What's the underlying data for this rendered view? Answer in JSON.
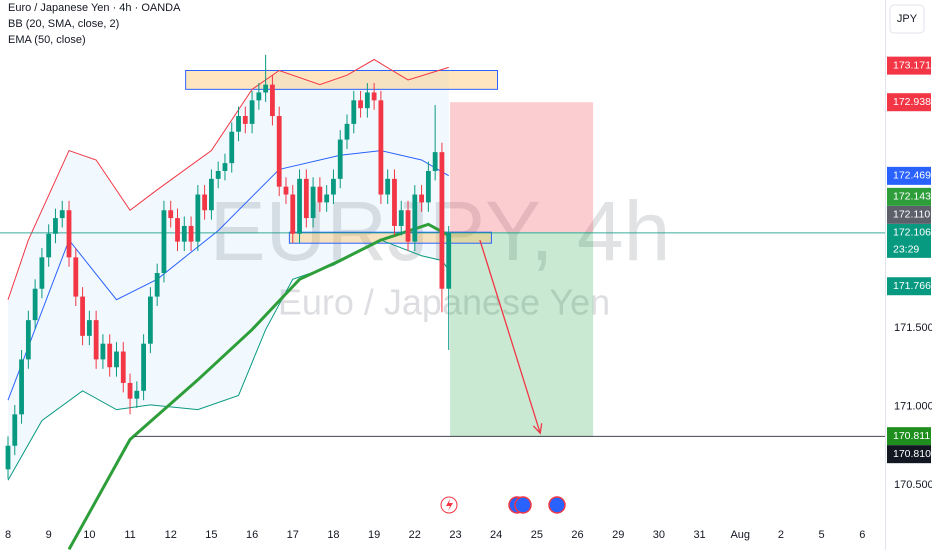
{
  "chart_data": {
    "type": "candlestick",
    "title": "Euro / Japanese Yen · 4h · OANDA",
    "indicator_labels": [
      "BB (20, SMA, close, 2)",
      "EMA (50, close)"
    ],
    "watermark": "EURJPY, 4h",
    "watermark_subtitle": "Euro / Japanese Yen",
    "currency": "JPY",
    "up_color": "#089981",
    "down_color": "#f23645",
    "x": [
      0,
      1,
      2,
      3,
      4,
      5,
      6,
      7,
      8,
      9,
      10,
      11,
      12,
      13,
      14,
      15,
      16,
      17,
      18,
      19,
      20,
      21,
      22,
      23,
      24,
      25,
      26,
      27,
      28,
      29,
      30,
      31,
      32,
      33,
      34,
      35,
      36,
      37,
      38,
      39,
      40,
      41,
      42,
      43,
      44,
      45,
      46,
      47,
      48,
      49,
      50,
      51,
      52,
      53,
      54,
      55,
      56,
      57,
      58,
      59,
      60,
      61,
      62,
      63,
      64,
      65
    ],
    "open": [
      170.6,
      170.75,
      170.95,
      171.3,
      171.55,
      171.75,
      171.95,
      172.1,
      172.2,
      172.25,
      171.95,
      171.7,
      171.45,
      171.55,
      171.3,
      171.4,
      171.25,
      171.35,
      171.15,
      171.05,
      171.1,
      171.4,
      171.7,
      171.85,
      172.25,
      172.2,
      172.05,
      172.15,
      172.05,
      172.35,
      172.25,
      172.45,
      172.5,
      172.55,
      172.75,
      172.85,
      172.8,
      172.95,
      173.0,
      173.05,
      172.85,
      172.4,
      172.35,
      172.1,
      172.45,
      172.2,
      172.4,
      172.3,
      172.35,
      172.45,
      172.7,
      172.8,
      172.95,
      172.9,
      173.0,
      172.95,
      172.35,
      172.45,
      172.15,
      172.25,
      172.05,
      172.35,
      172.3,
      172.5,
      172.62,
      171.75
    ],
    "high": [
      170.81,
      171.01,
      171.36,
      171.61,
      171.81,
      172.01,
      172.16,
      172.26,
      172.31,
      172.31,
      172.01,
      171.76,
      171.61,
      171.61,
      171.46,
      171.46,
      171.41,
      171.41,
      171.21,
      171.16,
      171.46,
      171.76,
      171.91,
      172.31,
      172.31,
      172.26,
      172.21,
      172.21,
      172.41,
      172.41,
      172.51,
      172.56,
      172.61,
      172.81,
      172.91,
      172.91,
      173.01,
      173.06,
      173.24,
      173.11,
      172.91,
      172.46,
      172.41,
      172.51,
      172.51,
      172.46,
      172.46,
      172.41,
      172.51,
      172.76,
      172.86,
      173.01,
      173.01,
      173.06,
      173.06,
      173.01,
      172.51,
      172.51,
      172.31,
      172.31,
      172.41,
      172.41,
      172.56,
      172.92,
      172.68,
      172.15
    ],
    "low": [
      170.54,
      170.69,
      170.89,
      171.24,
      171.49,
      171.69,
      171.89,
      172.04,
      172.14,
      171.89,
      171.64,
      171.39,
      171.39,
      171.24,
      171.24,
      171.19,
      171.19,
      171.09,
      170.95,
      170.99,
      171.04,
      171.34,
      171.64,
      171.79,
      172.14,
      171.99,
      171.99,
      171.99,
      171.99,
      172.19,
      172.19,
      172.39,
      172.44,
      172.49,
      172.69,
      172.74,
      172.74,
      172.89,
      172.94,
      172.79,
      172.34,
      172.29,
      172.04,
      172.04,
      172.14,
      172.14,
      172.24,
      172.24,
      172.29,
      172.39,
      172.64,
      172.74,
      172.84,
      172.84,
      172.89,
      172.29,
      172.29,
      172.09,
      172.09,
      171.99,
      171.99,
      172.24,
      172.24,
      172.44,
      171.6,
      171.36
    ],
    "close": [
      170.75,
      170.95,
      171.3,
      171.55,
      171.75,
      171.95,
      172.1,
      172.2,
      172.25,
      171.95,
      171.7,
      171.45,
      171.55,
      171.3,
      171.4,
      171.25,
      171.35,
      171.15,
      171.05,
      171.1,
      171.4,
      171.7,
      171.85,
      172.25,
      172.2,
      172.05,
      172.15,
      172.05,
      172.35,
      172.25,
      172.45,
      172.5,
      172.55,
      172.75,
      172.85,
      172.8,
      172.95,
      173.0,
      173.05,
      172.85,
      172.4,
      172.35,
      172.1,
      172.45,
      172.2,
      172.4,
      172.3,
      172.35,
      172.45,
      172.7,
      172.8,
      172.95,
      172.9,
      173.0,
      172.95,
      172.35,
      172.45,
      172.15,
      172.25,
      172.05,
      172.35,
      172.3,
      172.5,
      172.62,
      171.75,
      172.106
    ],
    "overlays": [
      {
        "color": "#f23645",
        "width": 1,
        "x": [
          0,
          3,
          9,
          13,
          18,
          22,
          30,
          36,
          40,
          46,
          50,
          54,
          59,
          65
        ],
        "values": [
          171.68,
          172.06,
          172.63,
          172.57,
          172.25,
          172.38,
          172.63,
          173.02,
          173.14,
          173.05,
          173.11,
          173.21,
          173.08,
          173.16
        ]
      },
      {
        "color": "#2962ff",
        "width": 1,
        "x": [
          0,
          9,
          16,
          22,
          31,
          40,
          49,
          55,
          61,
          65
        ],
        "values": [
          171.04,
          172.06,
          171.68,
          171.81,
          172.12,
          172.51,
          172.6,
          172.63,
          172.57,
          172.47
        ]
      },
      {
        "color": "#089981",
        "width": 1,
        "x": [
          0,
          5,
          11,
          16,
          21,
          28,
          34,
          38,
          42,
          48,
          55,
          61,
          64,
          65
        ],
        "values": [
          170.53,
          170.91,
          171.1,
          170.98,
          171.01,
          170.98,
          171.07,
          171.49,
          171.81,
          171.9,
          172.06,
          171.96,
          171.93,
          171.87
        ]
      },
      {
        "color": "#2e9e3a",
        "width": 3,
        "x": [
          9,
          18,
          28,
          36,
          43,
          49,
          55,
          62,
          65
        ],
        "values": [
          170.09,
          170.79,
          171.17,
          171.49,
          171.81,
          171.93,
          172.06,
          172.16,
          172.09
        ]
      }
    ],
    "zones": [
      {
        "x": [
          26.2,
          72.2
        ],
        "y": [
          173.02,
          173.14
        ],
        "fill": "rgba(255,183,77,0.35)",
        "stroke": "#2962ff"
      },
      {
        "x": [
          41.5,
          71.3
        ],
        "y": [
          172.04,
          172.11
        ],
        "fill": "rgba(255,183,77,0.35)",
        "stroke": "#2962ff"
      }
    ],
    "position": {
      "x": [
        65.2,
        86.3
      ],
      "entry": 172.11,
      "stop": 172.938,
      "target": 170.811
    },
    "arrow": {
      "x": [
        69.6,
        78.5
      ],
      "y": [
        172.06,
        170.83
      ]
    },
    "xlim": [
      -1.18,
      129.35
    ],
    "xticks": [
      {
        "value": 0,
        "label": "8"
      },
      {
        "value": 6,
        "label": "9"
      },
      {
        "value": 12,
        "label": "10"
      },
      {
        "value": 18,
        "label": "11"
      },
      {
        "value": 24,
        "label": "12"
      },
      {
        "value": 30,
        "label": "15"
      },
      {
        "value": 36,
        "label": "16"
      },
      {
        "value": 42,
        "label": "17"
      },
      {
        "value": 48,
        "label": "18"
      },
      {
        "value": 54,
        "label": "19"
      },
      {
        "value": 60,
        "label": "22"
      },
      {
        "value": 66,
        "label": "23"
      },
      {
        "value": 72,
        "label": "24"
      },
      {
        "value": 78,
        "label": "25"
      },
      {
        "value": 84,
        "label": "26"
      },
      {
        "value": 90,
        "label": "29"
      },
      {
        "value": 96,
        "label": "30"
      },
      {
        "value": 102,
        "label": "31"
      },
      {
        "value": 108,
        "label": "Aug"
      },
      {
        "value": 114,
        "label": "2"
      },
      {
        "value": 120,
        "label": "5"
      },
      {
        "value": 126,
        "label": "6"
      }
    ],
    "ylim": [
      170.086,
      173.589
    ],
    "yticks": [
      {
        "value": 171.5,
        "label": "171.500"
      },
      {
        "value": 171,
        "label": "171.000"
      },
      {
        "value": 170.5,
        "label": "170.500"
      }
    ],
    "countdown": "23:29",
    "price_labels": [
      {
        "value": 172.106,
        "label": "172.106",
        "color": "#089981",
        "line_from": -1.18
      },
      {
        "value": 170.811,
        "label": "170.811",
        "color": "#1e8e1e"
      },
      {
        "value": 171.766,
        "label": "171.766",
        "color": "#089981"
      },
      {
        "value": 172.11,
        "label": "172.110",
        "color": "#5d606b"
      },
      {
        "value": 172.143,
        "label": "172.143",
        "color": "#2e9e3a"
      },
      {
        "value": 172.469,
        "label": "172.469",
        "color": "#2962ff"
      },
      {
        "value": 172.938,
        "label": "172.938",
        "color": "#f23645"
      },
      {
        "value": 173.171,
        "label": "173.171",
        "color": "#f23645"
      },
      {
        "value": 170.81,
        "label": "170.810",
        "color": "#131722",
        "line_from": 18.7
      }
    ]
  }
}
